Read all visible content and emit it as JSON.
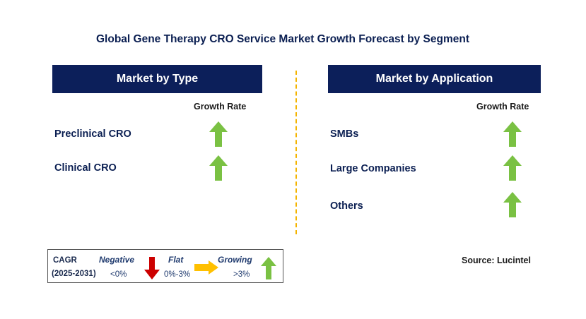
{
  "title": "Global Gene Therapy CRO Service Market Growth Forecast by Segment",
  "left_panel": {
    "header": "Market by Type",
    "growth_label": "Growth Rate",
    "rows": [
      {
        "label": "Preclinical CRO",
        "trend": "growing"
      },
      {
        "label": "Clinical CRO",
        "trend": "growing"
      }
    ]
  },
  "right_panel": {
    "header": "Market by Application",
    "growth_label": "Growth Rate",
    "rows": [
      {
        "label": "SMBs",
        "trend": "growing"
      },
      {
        "label": "Large Companies",
        "trend": "growing"
      },
      {
        "label": "Others",
        "trend": "growing"
      }
    ]
  },
  "legend": {
    "cagr": "CAGR",
    "period": "(2025-2031)",
    "negative_label": "Negative",
    "negative_range": "<0%",
    "flat_label": "Flat",
    "flat_range": "0%-3%",
    "growing_label": "Growing",
    "growing_range": ">3%"
  },
  "source": "Source: Lucintel",
  "colors": {
    "header_bg": "#0c1f5a",
    "growing_arrow": "#7ac143",
    "negative_arrow": "#cc0000",
    "flat_arrow": "#ffc000",
    "divider": "#f4b400"
  }
}
